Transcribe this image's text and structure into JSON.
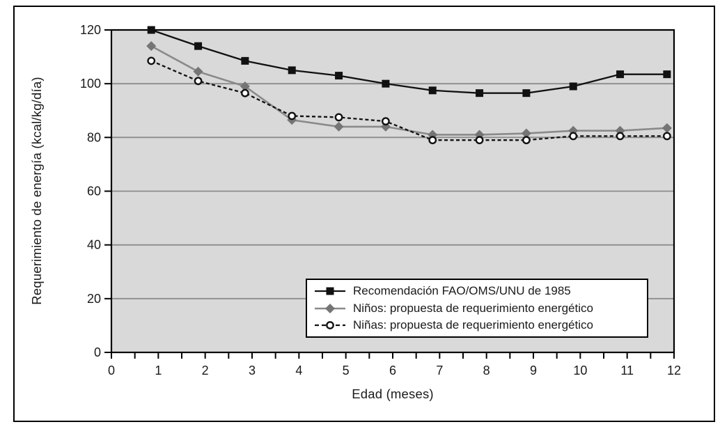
{
  "chart_data": {
    "type": "line",
    "title": "",
    "xlabel": "Edad (meses)",
    "ylabel": "Requerimiento de energía (kcal/kg/día)",
    "xlim": [
      0,
      12
    ],
    "ylim": [
      0,
      120
    ],
    "xticks": [
      0,
      1,
      2,
      3,
      4,
      5,
      6,
      7,
      8,
      9,
      10,
      11,
      12
    ],
    "xtick_minor_step": 0.5,
    "yticks": [
      0,
      20,
      40,
      60,
      80,
      100,
      120
    ],
    "grid": {
      "horizontal_at": [
        20,
        40,
        60,
        80,
        100
      ],
      "color": "#8c8c8c"
    },
    "plot_background": "#d9d9d9",
    "axis_color": "#000000",
    "legend": {
      "position": "inside-bottom-right",
      "background": "#ffffff",
      "border_color": "#000000"
    },
    "x": [
      0.85,
      1.85,
      2.85,
      3.85,
      4.85,
      5.85,
      6.85,
      7.85,
      8.85,
      9.85,
      10.85,
      11.85
    ],
    "series": [
      {
        "name": "Recomendación FAO/OMS/UNU de 1985",
        "line_style": "solid",
        "line_color": "#111111",
        "marker": "square",
        "marker_color": "#111111",
        "values": [
          120,
          114,
          108.5,
          105,
          103,
          100,
          97.5,
          96.5,
          96.5,
          99,
          103.5,
          103.5
        ]
      },
      {
        "name": "Niños: propuesta de requerimiento energético",
        "line_style": "solid",
        "line_color": "#8a8a8a",
        "marker": "diamond",
        "marker_color": "#757575",
        "values": [
          114,
          104.5,
          99,
          86.5,
          84,
          84,
          81,
          81,
          81.5,
          82.5,
          82.5,
          83.5
        ]
      },
      {
        "name": "Niñas: propuesta de requerimiento energético",
        "line_style": "dashed",
        "line_color": "#111111",
        "marker": "circle-open",
        "marker_color": "#ffffff",
        "values": [
          108.5,
          101,
          96.5,
          88,
          87.5,
          86,
          79,
          79,
          79,
          80.5,
          80.5,
          80.5
        ]
      }
    ]
  }
}
